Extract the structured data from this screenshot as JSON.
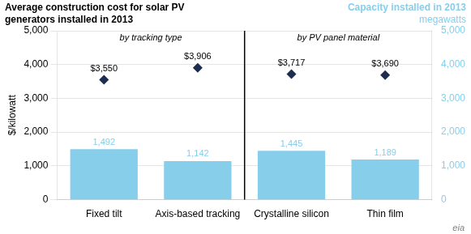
{
  "chart_data": {
    "type": "bar",
    "title": [
      "Average construction cost for solar PV",
      "generators installed in 2013"
    ],
    "subtitle": [
      "Capacity installed in 2013",
      "megawatts"
    ],
    "ylabel": "$/kilowatt",
    "categories": [
      "Fixed tilt",
      "Axis-based tracking",
      "Crystalline silicon",
      "Thin film"
    ],
    "series": [
      {
        "type": "bar",
        "axis": "y2",
        "color": "#87CEEB",
        "values": [
          1492,
          1142,
          1445,
          1189
        ],
        "value_labels": [
          "1,492",
          "1,142",
          "1,445",
          "1,189"
        ]
      },
      {
        "type": "scatter",
        "marker": "diamond",
        "color": "#1C2D4F",
        "values": [
          3550,
          3906,
          3717,
          3690
        ],
        "value_labels": [
          "$3,550",
          "$3,906",
          "$3,717",
          "$3,690"
        ]
      }
    ],
    "ylim": [
      0,
      5000
    ],
    "yticks": [
      0,
      {
        "value": 1000,
        "label": "1,000"
      },
      {
        "value": 2000,
        "label": "2,000"
      },
      {
        "value": 3000,
        "label": "3,000"
      },
      {
        "value": 4000,
        "label": "4,000"
      },
      {
        "value": 5000,
        "label": "5,000"
      }
    ],
    "y2lim": [
      0,
      5000
    ],
    "y2ticks": [
      0,
      {
        "value": 1000,
        "label": "1,000"
      },
      {
        "value": 2000,
        "label": "2,000"
      },
      {
        "value": 3000,
        "label": "3,000"
      },
      {
        "value": 4000,
        "label": "4,000"
      },
      {
        "value": 5000,
        "label": "5,000"
      }
    ],
    "grid": true,
    "data_labels": true,
    "annotations": [
      {
        "text": "by tracking type",
        "categories": [
          "Fixed tilt",
          "Axis-based tracking"
        ]
      },
      {
        "text": "by PV panel material",
        "categories": [
          "Crystalline silicon",
          "Thin film"
        ]
      },
      {
        "text": "eia"
      }
    ]
  }
}
